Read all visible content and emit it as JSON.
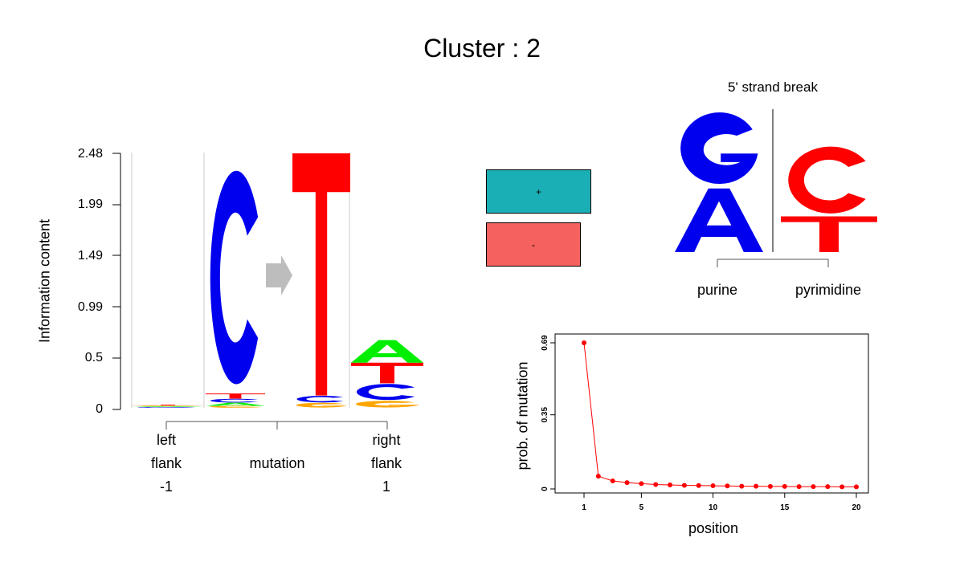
{
  "title": "Cluster : 2",
  "logo": {
    "ylabel": "Information content",
    "yticks": [
      "2.48",
      "1.99",
      "1.49",
      "0.99",
      "0.5",
      "0"
    ],
    "ymax": 2.48,
    "columns": [
      {
        "position": "left flank",
        "letters": [
          {
            "base": "C",
            "height": 0.005
          },
          {
            "base": "A",
            "height": 0.005
          },
          {
            "base": "G",
            "height": 0.005
          },
          {
            "base": "T",
            "height": 0.005
          }
        ]
      },
      {
        "position": "mutation ref",
        "letters": [
          {
            "base": "G",
            "height": 0.02
          },
          {
            "base": "A",
            "height": 0.03
          },
          {
            "base": "C",
            "height": 0.04
          },
          {
            "base": "T",
            "height": 0.05
          },
          {
            "base": "C",
            "height": 2.26
          }
        ]
      },
      {
        "position": "mutation alt",
        "letters": [
          {
            "base": "G",
            "height": 0.05
          },
          {
            "base": "C",
            "height": 0.07
          },
          {
            "base": "T",
            "height": 2.36
          }
        ]
      },
      {
        "position": "right flank",
        "letters": [
          {
            "base": "G",
            "height": 0.07
          },
          {
            "base": "C",
            "height": 0.17
          },
          {
            "base": "T",
            "height": 0.2
          },
          {
            "base": "A",
            "height": 0.22
          }
        ]
      }
    ],
    "xgroups": [
      {
        "lines": [
          "left",
          "flank",
          "-1"
        ]
      },
      {
        "lines": [
          "mutation"
        ]
      },
      {
        "lines": [
          "right",
          "flank",
          "1"
        ]
      }
    ]
  },
  "strand": {
    "plus_label": "+",
    "minus_label": "-",
    "plus_color": "#1aafb4",
    "minus_color": "#f4615e",
    "plus_value": 1.0,
    "minus_value": 0.9
  },
  "strand_break": {
    "title": "5' strand break",
    "left_group": "purine",
    "right_group": "pyrimidine",
    "left_letters": [
      {
        "base": "A",
        "height": 0.45
      },
      {
        "base": "G",
        "height": 0.55
      }
    ],
    "right_letters": [
      {
        "base": "T",
        "height": 0.33
      },
      {
        "base": "C",
        "height": 0.67
      }
    ]
  },
  "colors": {
    "A": "#00ee00",
    "C": "#0000ee",
    "G": "#ffa500",
    "T": "#ff0000",
    "arrow": "#bdbdbd",
    "break_A": "#0000ee",
    "break_G": "#0000ee",
    "break_C": "#ff0000",
    "break_T": "#ff0000"
  },
  "chart_data": {
    "type": "line",
    "xlabel": "position",
    "ylabel": "prob. of mutation",
    "x": [
      1,
      2,
      3,
      4,
      5,
      6,
      7,
      8,
      9,
      10,
      11,
      12,
      13,
      14,
      15,
      16,
      17,
      18,
      19,
      20
    ],
    "values": [
      0.69,
      0.06,
      0.038,
      0.03,
      0.025,
      0.021,
      0.019,
      0.017,
      0.016,
      0.015,
      0.014,
      0.013,
      0.013,
      0.012,
      0.012,
      0.011,
      0.011,
      0.011,
      0.01,
      0.01
    ],
    "xticks": [
      "1",
      "5",
      "10",
      "15",
      "20"
    ],
    "yticks": [
      "0",
      "0.35",
      "0.69"
    ],
    "ylim": [
      0,
      0.69
    ],
    "xlim": [
      1,
      20
    ],
    "color": "#ff0000"
  }
}
